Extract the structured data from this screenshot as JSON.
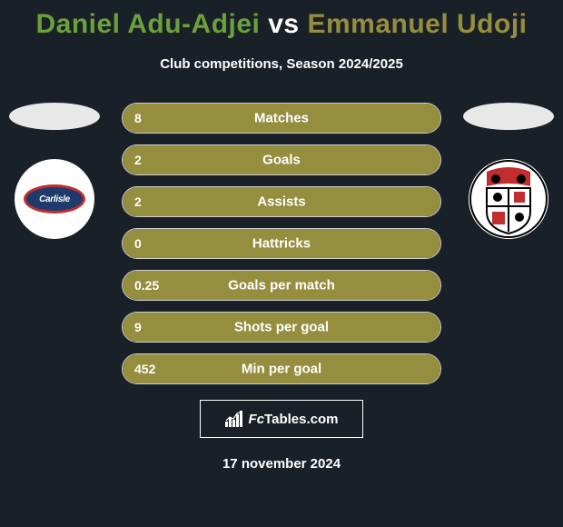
{
  "background_color": "#1a2028",
  "title": {
    "player1": "Daniel Adu-Adjei",
    "vs": "vs",
    "player2": "Emmanuel Udoji",
    "player1_color": "#69a13a",
    "vs_color": "#ffffff",
    "player2_color": "#958e3f",
    "fontsize": 30
  },
  "subtitle": "Club competitions, Season 2024/2025",
  "side": {
    "left_club": "Carlisle",
    "right_club": "Bromley"
  },
  "bars": {
    "track_width": 350,
    "border_color": "#d0d0d0",
    "label_fontsize": 15,
    "value_fontsize": 14,
    "fill_color_p1_only": "#958e3f",
    "rows": [
      {
        "label": "Matches",
        "value_left": "8",
        "fill_pct": 100
      },
      {
        "label": "Goals",
        "value_left": "2",
        "fill_pct": 100
      },
      {
        "label": "Assists",
        "value_left": "2",
        "fill_pct": 100
      },
      {
        "label": "Hattricks",
        "value_left": "0",
        "fill_pct": 100
      },
      {
        "label": "Goals per match",
        "value_left": "0.25",
        "fill_pct": 100
      },
      {
        "label": "Shots per goal",
        "value_left": "9",
        "fill_pct": 100
      },
      {
        "label": "Min per goal",
        "value_left": "452",
        "fill_pct": 100
      }
    ]
  },
  "brand": {
    "text_fc": "Fc",
    "text_rest": "Tables.com"
  },
  "date": "17 november 2024"
}
